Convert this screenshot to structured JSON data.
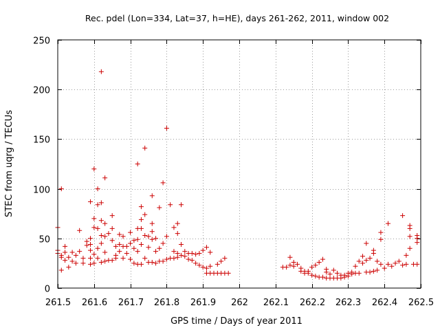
{
  "chart_data": {
    "type": "scatter",
    "title": "Rec. pdel (Lon=334, Lat=37, h=HE), days 261-262, 2011, window 002",
    "xlabel": "GPS time / Days of year 2011",
    "ylabel": "STEC from uqrg / TECUs",
    "xlim": [
      261.5,
      262.5
    ],
    "ylim": [
      0,
      250
    ],
    "xticks": [
      261.5,
      261.6,
      261.7,
      261.8,
      261.9,
      262,
      262.1,
      262.2,
      262.3,
      262.4,
      262.5
    ],
    "xtick_labels": [
      "261.5",
      "261.6",
      "261.7",
      "261.8",
      "261.9",
      "262",
      "262.1",
      "262.2",
      "262.3",
      "262.4",
      "262.5"
    ],
    "yticks": [
      0,
      50,
      100,
      150,
      200,
      250
    ],
    "ytick_labels": [
      "0",
      "50",
      "100",
      "150",
      "200",
      "250"
    ],
    "marker": "+",
    "color": "#cc0000",
    "series": [
      {
        "name": "STEC",
        "points": [
          [
            261.5,
            61
          ],
          [
            261.51,
            100
          ],
          [
            261.5,
            38
          ],
          [
            261.5,
            35
          ],
          [
            261.51,
            33
          ],
          [
            261.51,
            31
          ],
          [
            261.52,
            42
          ],
          [
            261.52,
            36
          ],
          [
            261.52,
            28
          ],
          [
            261.51,
            18
          ],
          [
            261.53,
            21
          ],
          [
            261.53,
            31
          ],
          [
            261.54,
            36
          ],
          [
            261.54,
            27
          ],
          [
            261.55,
            33
          ],
          [
            261.55,
            25
          ],
          [
            261.56,
            58
          ],
          [
            261.56,
            37
          ],
          [
            261.57,
            30
          ],
          [
            261.57,
            25
          ],
          [
            261.58,
            47
          ],
          [
            261.58,
            43
          ],
          [
            261.59,
            87
          ],
          [
            261.59,
            50
          ],
          [
            261.59,
            44
          ],
          [
            261.59,
            38
          ],
          [
            261.59,
            30
          ],
          [
            261.59,
            24
          ],
          [
            261.6,
            120
          ],
          [
            261.6,
            70
          ],
          [
            261.6,
            61
          ],
          [
            261.6,
            34
          ],
          [
            261.6,
            25
          ],
          [
            261.61,
            100
          ],
          [
            261.61,
            84
          ],
          [
            261.61,
            60
          ],
          [
            261.61,
            40
          ],
          [
            261.61,
            30
          ],
          [
            261.62,
            218
          ],
          [
            261.62,
            86
          ],
          [
            261.62,
            68
          ],
          [
            261.62,
            53
          ],
          [
            261.62,
            45
          ],
          [
            261.62,
            26
          ],
          [
            261.63,
            111
          ],
          [
            261.63,
            65
          ],
          [
            261.63,
            52
          ],
          [
            261.63,
            36
          ],
          [
            261.63,
            27
          ],
          [
            261.64,
            55
          ],
          [
            261.64,
            28
          ],
          [
            261.65,
            73
          ],
          [
            261.65,
            60
          ],
          [
            261.65,
            48
          ],
          [
            261.65,
            28
          ],
          [
            261.66,
            42
          ],
          [
            261.66,
            33
          ],
          [
            261.66,
            30
          ],
          [
            261.67,
            54
          ],
          [
            261.67,
            44
          ],
          [
            261.67,
            37
          ],
          [
            261.68,
            52
          ],
          [
            261.68,
            42
          ],
          [
            261.68,
            30
          ],
          [
            261.69,
            42
          ],
          [
            261.69,
            35
          ],
          [
            261.7,
            56
          ],
          [
            261.7,
            45
          ],
          [
            261.7,
            29
          ],
          [
            261.71,
            48
          ],
          [
            261.71,
            40
          ],
          [
            261.71,
            25
          ],
          [
            261.72,
            125
          ],
          [
            261.72,
            60
          ],
          [
            261.72,
            49
          ],
          [
            261.72,
            37
          ],
          [
            261.72,
            24
          ],
          [
            261.73,
            82
          ],
          [
            261.73,
            69
          ],
          [
            261.73,
            60
          ],
          [
            261.73,
            44
          ],
          [
            261.73,
            24
          ],
          [
            261.74,
            141
          ],
          [
            261.74,
            74
          ],
          [
            261.74,
            53
          ],
          [
            261.74,
            30
          ],
          [
            261.75,
            52
          ],
          [
            261.75,
            41
          ],
          [
            261.75,
            26
          ],
          [
            261.76,
            93
          ],
          [
            261.76,
            65
          ],
          [
            261.76,
            57
          ],
          [
            261.76,
            49
          ],
          [
            261.76,
            26
          ],
          [
            261.77,
            50
          ],
          [
            261.77,
            37
          ],
          [
            261.77,
            25
          ],
          [
            261.78,
            81
          ],
          [
            261.78,
            40
          ],
          [
            261.78,
            27
          ],
          [
            261.79,
            106
          ],
          [
            261.79,
            45
          ],
          [
            261.79,
            27
          ],
          [
            261.8,
            161
          ],
          [
            261.8,
            52
          ],
          [
            261.8,
            29
          ],
          [
            261.81,
            84
          ],
          [
            261.81,
            30
          ],
          [
            261.82,
            61
          ],
          [
            261.82,
            37
          ],
          [
            261.82,
            30
          ],
          [
            261.83,
            65
          ],
          [
            261.83,
            55
          ],
          [
            261.83,
            35
          ],
          [
            261.83,
            31
          ],
          [
            261.84,
            84
          ],
          [
            261.84,
            44
          ],
          [
            261.84,
            33
          ],
          [
            261.85,
            37
          ],
          [
            261.85,
            32
          ],
          [
            261.86,
            35
          ],
          [
            261.86,
            29
          ],
          [
            261.87,
            35
          ],
          [
            261.87,
            28
          ],
          [
            261.88,
            34
          ],
          [
            261.88,
            25
          ],
          [
            261.89,
            35
          ],
          [
            261.89,
            23
          ],
          [
            261.9,
            38
          ],
          [
            261.9,
            21
          ],
          [
            261.91,
            41
          ],
          [
            261.91,
            20
          ],
          [
            261.92,
            36
          ],
          [
            261.92,
            22
          ],
          [
            261.91,
            15
          ],
          [
            261.92,
            15
          ],
          [
            261.93,
            15
          ],
          [
            261.94,
            15
          ],
          [
            261.94,
            24
          ],
          [
            261.95,
            15
          ],
          [
            261.95,
            27
          ],
          [
            261.96,
            15
          ],
          [
            261.96,
            30
          ],
          [
            261.97,
            15
          ],
          [
            262.12,
            21
          ],
          [
            262.13,
            21
          ],
          [
            262.14,
            31
          ],
          [
            262.14,
            23
          ],
          [
            262.15,
            22
          ],
          [
            262.15,
            26
          ],
          [
            262.16,
            24
          ],
          [
            262.17,
            20
          ],
          [
            262.17,
            17
          ],
          [
            262.18,
            17
          ],
          [
            262.18,
            15
          ],
          [
            262.19,
            17
          ],
          [
            262.19,
            15
          ],
          [
            262.2,
            21
          ],
          [
            262.2,
            13
          ],
          [
            262.21,
            23
          ],
          [
            262.21,
            12
          ],
          [
            262.22,
            26
          ],
          [
            262.22,
            11
          ],
          [
            262.23,
            29
          ],
          [
            262.23,
            11
          ],
          [
            262.24,
            19
          ],
          [
            262.24,
            16
          ],
          [
            262.24,
            10
          ],
          [
            262.25,
            14
          ],
          [
            262.25,
            10
          ],
          [
            262.26,
            18
          ],
          [
            262.26,
            10
          ],
          [
            262.27,
            15
          ],
          [
            262.27,
            10
          ],
          [
            262.28,
            13
          ],
          [
            262.28,
            10
          ],
          [
            262.29,
            13
          ],
          [
            262.29,
            11
          ],
          [
            262.3,
            15
          ],
          [
            262.3,
            12
          ],
          [
            262.31,
            16
          ],
          [
            262.31,
            14
          ],
          [
            262.32,
            22
          ],
          [
            262.32,
            15
          ],
          [
            262.33,
            27
          ],
          [
            262.33,
            15
          ],
          [
            262.34,
            32
          ],
          [
            262.34,
            25
          ],
          [
            262.35,
            45
          ],
          [
            262.35,
            28
          ],
          [
            262.35,
            16
          ],
          [
            262.36,
            30
          ],
          [
            262.36,
            16
          ],
          [
            262.37,
            38
          ],
          [
            262.37,
            35
          ],
          [
            262.37,
            17
          ],
          [
            262.38,
            27
          ],
          [
            262.38,
            18
          ],
          [
            262.39,
            56
          ],
          [
            262.39,
            49
          ],
          [
            262.39,
            24
          ],
          [
            262.4,
            20
          ],
          [
            262.41,
            65
          ],
          [
            262.41,
            24
          ],
          [
            262.42,
            22
          ],
          [
            262.43,
            25
          ],
          [
            262.44,
            27
          ],
          [
            262.45,
            23
          ],
          [
            262.45,
            73
          ],
          [
            262.46,
            33
          ],
          [
            262.46,
            24
          ],
          [
            262.47,
            63
          ],
          [
            262.47,
            60
          ],
          [
            262.47,
            52
          ],
          [
            262.47,
            40
          ],
          [
            262.48,
            24
          ],
          [
            262.49,
            53
          ],
          [
            262.49,
            50
          ],
          [
            262.49,
            46
          ],
          [
            262.49,
            24
          ]
        ]
      }
    ]
  }
}
